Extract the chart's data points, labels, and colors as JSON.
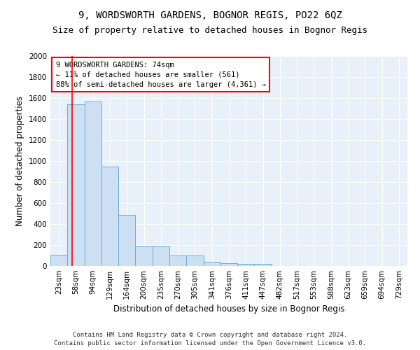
{
  "title": "9, WORDSWORTH GARDENS, BOGNOR REGIS, PO22 6QZ",
  "subtitle": "Size of property relative to detached houses in Bognor Regis",
  "xlabel": "Distribution of detached houses by size in Bognor Regis",
  "ylabel": "Number of detached properties",
  "bar_color": "#ccdff3",
  "bar_edge_color": "#6aaed6",
  "background_color": "#e8f0fa",
  "grid_color": "#ffffff",
  "categories": [
    "23sqm",
    "58sqm",
    "94sqm",
    "129sqm",
    "164sqm",
    "200sqm",
    "235sqm",
    "270sqm",
    "305sqm",
    "341sqm",
    "376sqm",
    "411sqm",
    "447sqm",
    "482sqm",
    "517sqm",
    "553sqm",
    "588sqm",
    "623sqm",
    "659sqm",
    "694sqm",
    "729sqm"
  ],
  "values": [
    110,
    1540,
    1570,
    950,
    490,
    185,
    185,
    100,
    100,
    40,
    30,
    20,
    20,
    0,
    0,
    0,
    0,
    0,
    0,
    0,
    0
  ],
  "red_line_x": 1.28,
  "annotation_line1": "9 WORDSWORTH GARDENS: 74sqm",
  "annotation_line2": "← 11% of detached houses are smaller (561)",
  "annotation_line3": "88% of semi-detached houses are larger (4,361) →",
  "ylim": [
    0,
    2000
  ],
  "yticks": [
    0,
    200,
    400,
    600,
    800,
    1000,
    1200,
    1400,
    1600,
    1800,
    2000
  ],
  "footer_line1": "Contains HM Land Registry data © Crown copyright and database right 2024.",
  "footer_line2": "Contains public sector information licensed under the Open Government Licence v3.0.",
  "title_fontsize": 10,
  "subtitle_fontsize": 9,
  "axis_label_fontsize": 8.5,
  "tick_fontsize": 7.5,
  "annotation_fontsize": 7.5,
  "footer_fontsize": 6.5
}
